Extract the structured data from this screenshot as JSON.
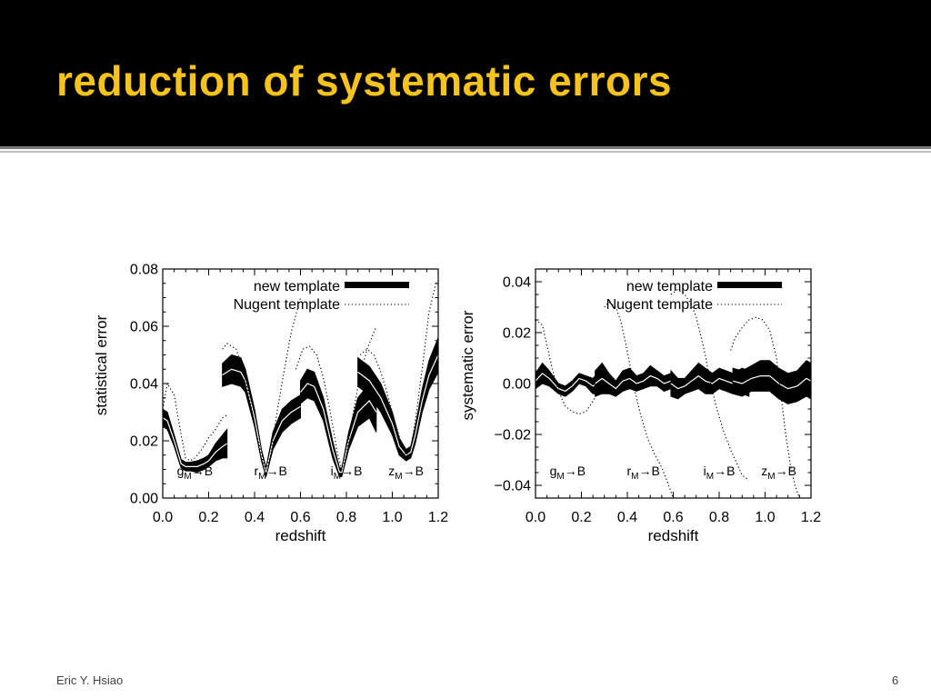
{
  "slide": {
    "title": "reduction of systematic errors",
    "footer_author": "Eric Y. Hsiao",
    "page_number": "6",
    "title_color": "#f5c31c"
  },
  "chart_data": [
    {
      "type": "line",
      "xlabel": "redshift",
      "ylabel": "statistical error",
      "xlim": [
        0.0,
        1.2
      ],
      "ylim": [
        0.0,
        0.08
      ],
      "xticks": [
        0.0,
        0.2,
        0.4,
        0.6,
        0.8,
        1.0,
        1.2
      ],
      "xtick_labels": [
        "0.0",
        "0.2",
        "0.4",
        "0.6",
        "0.8",
        "1.0",
        "1.2"
      ],
      "yticks": [
        0.0,
        0.02,
        0.04,
        0.06,
        0.08
      ],
      "ytick_labels": [
        "0.00",
        "0.02",
        "0.04",
        "0.06",
        "0.08"
      ],
      "grid": false,
      "legend_position": "top-right",
      "filter_labels": [
        {
          "x": 0.14,
          "base": "g",
          "sub": "M",
          "arrow": "→",
          "target": "B"
        },
        {
          "x": 0.47,
          "base": "r",
          "sub": "M",
          "arrow": "→",
          "target": "B"
        },
        {
          "x": 0.8,
          "base": "i",
          "sub": "M",
          "arrow": "→",
          "target": "B"
        },
        {
          "x": 1.06,
          "base": "z",
          "sub": "M",
          "arrow": "→",
          "target": "B"
        }
      ],
      "series": [
        {
          "name": "new template",
          "style": "band",
          "segments": [
            {
              "x": [
                0.0,
                0.02,
                0.05,
                0.08,
                0.1,
                0.12,
                0.15,
                0.18,
                0.2,
                0.23,
                0.26,
                0.28
              ],
              "y": [
                0.028,
                0.027,
                0.02,
                0.012,
                0.011,
                0.011,
                0.011,
                0.012,
                0.013,
                0.016,
                0.018,
                0.019
              ],
              "err": [
                0.003,
                0.003,
                0.002,
                0.0015,
                0.0015,
                0.0015,
                0.002,
                0.002,
                0.002,
                0.003,
                0.004,
                0.005
              ]
            },
            {
              "x": [
                0.26,
                0.3,
                0.34,
                0.36,
                0.4,
                0.43,
                0.45,
                0.48,
                0.52,
                0.56,
                0.6
              ],
              "y": [
                0.043,
                0.045,
                0.044,
                0.041,
                0.028,
                0.015,
                0.009,
                0.02,
                0.027,
                0.03,
                0.032
              ],
              "err": [
                0.004,
                0.005,
                0.005,
                0.004,
                0.003,
                0.002,
                0.0015,
                0.003,
                0.004,
                0.004,
                0.004
              ]
            },
            {
              "x": [
                0.6,
                0.63,
                0.66,
                0.7,
                0.74,
                0.77,
                0.78,
                0.81,
                0.85,
                0.9,
                0.93
              ],
              "y": [
                0.037,
                0.04,
                0.039,
                0.031,
                0.017,
                0.009,
                0.009,
                0.02,
                0.03,
                0.034,
                0.03
              ],
              "err": [
                0.004,
                0.005,
                0.005,
                0.004,
                0.003,
                0.0015,
                0.0015,
                0.003,
                0.005,
                0.006,
                0.007
              ]
            },
            {
              "x": [
                0.85,
                0.9,
                0.95,
                1.0,
                1.03,
                1.06,
                1.08,
                1.1,
                1.13,
                1.16,
                1.2
              ],
              "y": [
                0.044,
                0.041,
                0.035,
                0.026,
                0.018,
                0.015,
                0.016,
                0.022,
                0.034,
                0.043,
                0.05
              ],
              "err": [
                0.005,
                0.005,
                0.005,
                0.004,
                0.003,
                0.002,
                0.002,
                0.003,
                0.004,
                0.005,
                0.006
              ]
            }
          ]
        },
        {
          "name": "Nugent template",
          "style": "dotted",
          "segments": [
            {
              "x": [
                0.0,
                0.02,
                0.05,
                0.08,
                0.1,
                0.12,
                0.14,
                0.17,
                0.2,
                0.23,
                0.26,
                0.28
              ],
              "y": [
                0.031,
                0.04,
                0.036,
                0.022,
                0.014,
                0.013,
                0.014,
                0.017,
                0.021,
                0.024,
                0.028,
                0.029
              ]
            },
            {
              "x": [
                0.26,
                0.28,
                0.32,
                0.35,
                0.38,
                0.41,
                0.44,
                0.45,
                0.47,
                0.5,
                0.53,
                0.56,
                0.6
              ],
              "y": [
                0.052,
                0.054,
                0.052,
                0.045,
                0.034,
                0.022,
                0.012,
                0.01,
                0.015,
                0.031,
                0.045,
                0.058,
                0.07
              ]
            },
            {
              "x": [
                0.58,
                0.61,
                0.64,
                0.67,
                0.7,
                0.73,
                0.76,
                0.78,
                0.8,
                0.83,
                0.86,
                0.89,
                0.93
              ],
              "y": [
                0.045,
                0.052,
                0.053,
                0.05,
                0.042,
                0.03,
                0.016,
                0.01,
                0.015,
                0.03,
                0.043,
                0.052,
                0.06
              ]
            },
            {
              "x": [
                0.86,
                0.89,
                0.92,
                0.95,
                0.98,
                1.01,
                1.04,
                1.06,
                1.08,
                1.1,
                1.13,
                1.16,
                1.19
              ],
              "y": [
                0.05,
                0.052,
                0.05,
                0.044,
                0.036,
                0.027,
                0.019,
                0.015,
                0.017,
                0.027,
                0.045,
                0.065,
                0.075
              ]
            }
          ]
        }
      ]
    },
    {
      "type": "line",
      "xlabel": "redshift",
      "ylabel": "systematic error",
      "xlim": [
        0.0,
        1.2
      ],
      "ylim": [
        -0.045,
        0.045
      ],
      "xticks": [
        0.0,
        0.2,
        0.4,
        0.6,
        0.8,
        1.0,
        1.2
      ],
      "xtick_labels": [
        "0.0",
        "0.2",
        "0.4",
        "0.6",
        "0.8",
        "1.0",
        "1.2"
      ],
      "yticks": [
        -0.04,
        -0.02,
        0.0,
        0.02,
        0.04
      ],
      "ytick_labels": [
        "−0.04",
        "−0.02",
        "0.00",
        "0.02",
        "0.04"
      ],
      "grid": false,
      "legend_position": "top-right",
      "filter_labels": [
        {
          "x": 0.14,
          "base": "g",
          "sub": "M",
          "arrow": "→",
          "target": "B"
        },
        {
          "x": 0.47,
          "base": "r",
          "sub": "M",
          "arrow": "→",
          "target": "B"
        },
        {
          "x": 0.8,
          "base": "i",
          "sub": "M",
          "arrow": "→",
          "target": "B"
        },
        {
          "x": 1.06,
          "base": "z",
          "sub": "M",
          "arrow": "→",
          "target": "B"
        }
      ],
      "series": [
        {
          "name": "new template",
          "style": "band",
          "segments": [
            {
              "x": [
                0.0,
                0.03,
                0.06,
                0.1,
                0.13,
                0.16,
                0.19,
                0.22,
                0.25,
                0.27
              ],
              "y": [
                0.001,
                0.004,
                0.002,
                -0.002,
                -0.003,
                -0.001,
                0.002,
                0.001,
                -0.001,
                0.0
              ],
              "err": [
                0.003,
                0.004,
                0.003,
                0.002,
                0.002,
                0.002,
                0.002,
                0.002,
                0.003,
                0.004
              ]
            },
            {
              "x": [
                0.26,
                0.29,
                0.32,
                0.35,
                0.38,
                0.41,
                0.44,
                0.47,
                0.5,
                0.53,
                0.56,
                0.59
              ],
              "y": [
                0.0,
                0.002,
                0.0,
                -0.002,
                0.001,
                0.002,
                0.0,
                0.001,
                0.003,
                0.002,
                0.0,
                0.001
              ],
              "err": [
                0.005,
                0.006,
                0.004,
                0.003,
                0.004,
                0.004,
                0.003,
                0.003,
                0.004,
                0.003,
                0.003,
                0.003
              ]
            },
            {
              "x": [
                0.59,
                0.62,
                0.65,
                0.68,
                0.71,
                0.74,
                0.77,
                0.8,
                0.83,
                0.86,
                0.9,
                0.93
              ],
              "y": [
                0.0,
                -0.002,
                -0.001,
                0.001,
                0.003,
                0.001,
                0.0,
                0.002,
                0.001,
                0.0,
                0.001,
                0.0
              ],
              "err": [
                0.005,
                0.004,
                0.003,
                0.004,
                0.005,
                0.005,
                0.004,
                0.004,
                0.004,
                0.004,
                0.005,
                0.005
              ]
            },
            {
              "x": [
                0.86,
                0.9,
                0.94,
                0.98,
                1.02,
                1.06,
                1.1,
                1.14,
                1.18,
                1.2
              ],
              "y": [
                0.001,
                0.0,
                0.002,
                0.003,
                0.003,
                0.0,
                -0.002,
                -0.001,
                0.002,
                0.001
              ],
              "err": [
                0.005,
                0.005,
                0.005,
                0.006,
                0.006,
                0.006,
                0.006,
                0.006,
                0.007,
                0.007
              ]
            }
          ]
        },
        {
          "name": "Nugent template",
          "style": "dotted",
          "segments": [
            {
              "x": [
                0.0,
                0.03,
                0.05,
                0.07,
                0.09,
                0.11,
                0.13,
                0.16,
                0.19,
                0.22,
                0.25,
                0.27
              ],
              "y": [
                0.025,
                0.023,
                0.015,
                0.007,
                0.0,
                -0.005,
                -0.009,
                -0.011,
                -0.012,
                -0.011,
                -0.007,
                -0.004
              ]
            },
            {
              "x": [
                0.3,
                0.32,
                0.35,
                0.37,
                0.39,
                0.41,
                0.43,
                0.46,
                0.49,
                0.52,
                0.55,
                0.58,
                0.6
              ],
              "y": [
                0.03,
                0.032,
                0.03,
                0.025,
                0.017,
                0.008,
                -0.002,
                -0.013,
                -0.022,
                -0.028,
                -0.033,
                -0.04,
                -0.045
              ]
            },
            {
              "x": [
                0.59,
                0.62,
                0.65,
                0.68,
                0.7,
                0.72,
                0.74,
                0.76,
                0.79,
                0.82,
                0.85,
                0.88,
                0.9,
                0.93
              ],
              "y": [
                0.035,
                0.037,
                0.035,
                0.031,
                0.026,
                0.019,
                0.011,
                0.001,
                -0.01,
                -0.019,
                -0.026,
                -0.032,
                -0.036,
                -0.038
              ]
            },
            {
              "x": [
                0.85,
                0.87,
                0.9,
                0.93,
                0.96,
                0.99,
                1.02,
                1.05,
                1.07,
                1.09,
                1.11,
                1.13,
                1.15
              ],
              "y": [
                0.013,
                0.018,
                0.022,
                0.025,
                0.026,
                0.025,
                0.021,
                0.01,
                -0.005,
                -0.02,
                -0.032,
                -0.04,
                -0.045
              ]
            }
          ]
        }
      ]
    }
  ]
}
